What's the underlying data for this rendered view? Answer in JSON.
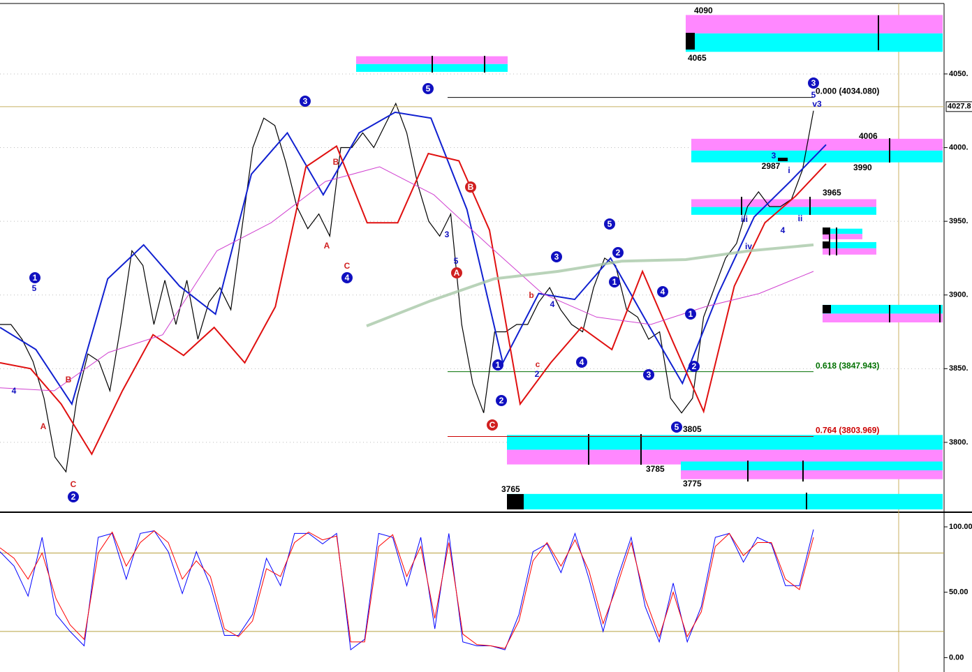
{
  "chart_data": [
    {
      "type": "line",
      "ylim": [
        3754.5,
        4097.8
      ],
      "yticks": [
        {
          "value": 3800,
          "label": "3800."
        },
        {
          "value": 3850,
          "label": "3850."
        },
        {
          "value": 3900,
          "label": "3900."
        },
        {
          "value": 3950,
          "label": "3950."
        },
        {
          "value": 4000,
          "label": "4000."
        },
        {
          "value": 4050,
          "label": "4050."
        }
      ],
      "grid": true,
      "last_price": 4027.8,
      "series": [
        {
          "color": "#000000",
          "values": [
            3880,
            3880,
            3870,
            3855,
            3830,
            3790,
            3780,
            3830,
            3860,
            3855,
            3835,
            3880,
            3930,
            3920,
            3880,
            3910,
            3880,
            3910,
            3870,
            3895,
            3905,
            3890,
            3945,
            4000,
            4020,
            4015,
            3990,
            3960,
            3945,
            3955,
            3940,
            4000,
            4000,
            4010,
            4000,
            4015,
            4030,
            4010,
            3975,
            3950,
            3940,
            3955,
            3880,
            3840,
            3820,
            3875,
            3875,
            3880,
            3880,
            3895,
            3905,
            3890,
            3880,
            3875,
            3905,
            3925,
            3920,
            3890,
            3885,
            3870,
            3875,
            3830,
            3820,
            3830,
            3885,
            3905,
            3925,
            3935,
            3960,
            3970,
            3960,
            3960,
            3965,
            3985,
            4025
          ]
        },
        {
          "color": "#1020d0",
          "values": [
            3878,
            3863,
            3826,
            3911,
            3934,
            3906,
            3887,
            3982,
            4010,
            3968,
            4010,
            4024,
            4020,
            3958,
            3854,
            3901,
            3897,
            3925,
            3882,
            3840,
            3901,
            3953,
            3977,
            4002
          ]
        },
        {
          "color": "#e01010",
          "values": [
            3854,
            3850,
            3826,
            3792,
            3835,
            3873,
            3859,
            3878,
            3854,
            3892,
            3987,
            4001,
            3949,
            3949,
            3996,
            3991,
            3944,
            3826,
            3854,
            3878,
            3863,
            3916,
            3868,
            3821,
            3906,
            3949,
            3967,
            3989
          ]
        },
        {
          "color": "#d040d0",
          "values": [
            3837,
            3835,
            3861,
            3873,
            3930,
            3949,
            3977,
            3987,
            3968,
            3934,
            3901,
            3885,
            3880,
            3892,
            3901,
            3916
          ]
        },
        {
          "color": "#a8c8a8",
          "values": [
            3879,
            3896,
            3911,
            3916,
            3923,
            3924,
            3930,
            3934
          ]
        }
      ],
      "fib_levels": [
        {
          "value": 4034.08,
          "label": "0.000 (4034.080)",
          "color": "#000000"
        },
        {
          "value": 3847.943,
          "label": "0.618 (3847.943)",
          "color": "#007000"
        },
        {
          "value": 3803.969,
          "label": "0.764 (3803.969)",
          "color": "#cc0000"
        }
      ],
      "zones": [
        {
          "high": 4090,
          "low": 4065,
          "colors": [
            "#ff88ff",
            "#00ffff"
          ]
        },
        {
          "high": 4006,
          "low": 3990,
          "colors": [
            "#ff88ff",
            "#00ffff"
          ]
        },
        {
          "high": 3965,
          "low": 3954.4,
          "colors": [
            "#ff88ff",
            "#00ffff"
          ]
        },
        {
          "high": 3805,
          "low": 3785,
          "colors": [
            "#00ffff",
            "#ff88ff"
          ]
        },
        {
          "high": 3787,
          "low": 3775,
          "colors": [
            "#00ffff",
            "#ff88ff"
          ]
        },
        {
          "high": 3765,
          "low": 3754.5,
          "colors": [
            "#00ffff"
          ]
        },
        {
          "high": 4062,
          "low": 4051.4,
          "colors": [
            "#ff88ff",
            "#00ffff"
          ]
        },
        {
          "high": 3945,
          "low": 3937.8,
          "colors": [
            "#00ffff",
            "#ff88ff"
          ]
        },
        {
          "high": 3935.9,
          "low": 3927.4,
          "colors": [
            "#00ffff",
            "#ff88ff"
          ]
        },
        {
          "high": 3893.3,
          "low": 3881.4,
          "colors": [
            "#00ffff",
            "#ff88ff"
          ]
        }
      ],
      "annotations": [
        {
          "text": "1",
          "color": "#1010c0",
          "circled": true
        },
        {
          "text": "5",
          "color": "#1010c0",
          "circled": false
        },
        {
          "text": "4",
          "color": "#1010c0",
          "circled": false
        },
        {
          "text": "B",
          "color": "#d02020",
          "circled": false
        },
        {
          "text": "A",
          "color": "#d02020",
          "circled": false
        },
        {
          "text": "C",
          "color": "#d02020",
          "circled": false
        },
        {
          "text": "2",
          "color": "#1010c0",
          "circled": true
        },
        {
          "text": "3",
          "color": "#1010c0",
          "circled": true
        },
        {
          "text": "B",
          "color": "#d02020",
          "circled": false
        },
        {
          "text": "A",
          "color": "#d02020",
          "circled": false
        },
        {
          "text": "C",
          "color": "#d02020",
          "circled": false
        },
        {
          "text": "4",
          "color": "#1010c0",
          "circled": true
        },
        {
          "text": "5",
          "color": "#1010c0",
          "circled": true
        },
        {
          "text": "B",
          "color": "#d02020",
          "circled": true
        },
        {
          "text": "A",
          "color": "#d02020",
          "circled": true
        },
        {
          "text": "C",
          "color": "#d02020",
          "circled": true
        },
        {
          "text": "1",
          "color": "#1010c0",
          "circled": true
        },
        {
          "text": "2",
          "color": "#1010c0",
          "circled": true
        },
        {
          "text": "3",
          "color": "#1010c0",
          "circled": true
        },
        {
          "text": "4",
          "color": "#1010c0",
          "circled": true
        },
        {
          "text": "5",
          "color": "#1010c0",
          "circled": true
        },
        {
          "text": "2",
          "color": "#1010c0",
          "circled": true
        },
        {
          "text": "1",
          "color": "#1010c0",
          "circled": true
        },
        {
          "text": "4",
          "color": "#1010c0",
          "circled": true
        },
        {
          "text": "3",
          "color": "#1010c0",
          "circled": true
        },
        {
          "text": "1",
          "color": "#1010c0",
          "circled": true
        },
        {
          "text": "2",
          "color": "#1010c0",
          "circled": true
        },
        {
          "text": "5",
          "color": "#1010c0",
          "circled": true
        },
        {
          "text": "3",
          "color": "#1010c0",
          "circled": true
        },
        {
          "text": "b",
          "color": "#d02020",
          "circled": false
        },
        {
          "text": "c",
          "color": "#d02020",
          "circled": false
        },
        {
          "text": "3",
          "color": "#1010c0",
          "circled": false
        },
        {
          "text": "2987",
          "color": "#000000",
          "circled": false
        },
        {
          "text": "i",
          "color": "#1010c0",
          "circled": false
        },
        {
          "text": "iii",
          "color": "#1010c0",
          "circled": false
        },
        {
          "text": "iv",
          "color": "#1010c0",
          "circled": false
        },
        {
          "text": "ii",
          "color": "#1010c0",
          "circled": false
        },
        {
          "text": "4",
          "color": "#1010c0",
          "circled": false
        },
        {
          "text": "5",
          "color": "#1010c0",
          "circled": false
        },
        {
          "text": "v3",
          "color": "#1010c0",
          "circled": false
        },
        {
          "text": "3",
          "color": "#1010c0",
          "circled": false
        },
        {
          "text": "2",
          "color": "#1010c0",
          "circled": false
        },
        {
          "text": "4",
          "color": "#1010c0",
          "circled": false
        },
        {
          "text": "5",
          "color": "#1010c0",
          "circled": false
        }
      ]
    },
    {
      "type": "line",
      "ylim": [
        -11,
        109.6
      ],
      "yticks": [
        {
          "value": 0,
          "label": "0.00"
        },
        {
          "value": 50,
          "label": "50.00"
        },
        {
          "value": 100,
          "label": "100.00"
        }
      ],
      "levels": [
        20,
        80
      ],
      "series": [
        {
          "color": "#0000ff",
          "values": [
            81,
            70,
            47,
            92,
            33,
            20,
            9,
            92,
            95,
            60,
            95,
            97,
            81,
            49,
            81,
            55,
            17,
            17,
            33,
            76,
            55,
            95,
            95,
            87,
            95,
            6,
            14,
            95,
            92,
            55,
            92,
            22,
            95,
            12,
            9,
            9,
            6,
            33,
            81,
            87,
            65,
            95,
            60,
            20,
            60,
            92,
            39,
            12,
            57,
            12,
            39,
            92,
            95,
            73,
            92,
            87,
            55,
            55,
            98
          ]
        },
        {
          "color": "#ff0000",
          "values": [
            84,
            76,
            60,
            80,
            45,
            25,
            14,
            80,
            96,
            70,
            88,
            97,
            88,
            60,
            74,
            62,
            22,
            16,
            28,
            68,
            62,
            88,
            96,
            90,
            93,
            12,
            12,
            85,
            94,
            62,
            85,
            30,
            88,
            18,
            10,
            9,
            7,
            28,
            74,
            88,
            70,
            90,
            66,
            26,
            55,
            88,
            45,
            16,
            50,
            16,
            35,
            85,
            95,
            78,
            88,
            88,
            60,
            52,
            92
          ]
        }
      ]
    }
  ]
}
